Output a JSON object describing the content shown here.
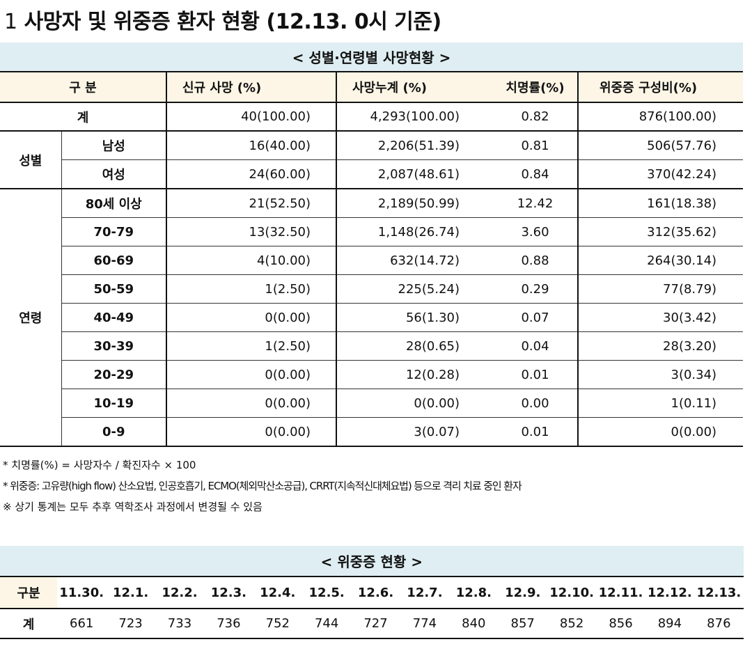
{
  "title": {
    "number": "1",
    "text": "사망자 및 위중증 환자 현황 (12.13. 0시 기준)"
  },
  "death_table": {
    "caption": "< 성별·연령별 사망현황 >",
    "headers": {
      "category": "구 분",
      "new_deaths": "신규 사망 (%)",
      "cumulative": "사망누계 (%)",
      "fatality": "치명률(%)",
      "severe": "위중증 구성비(%)"
    },
    "total": {
      "label": "계",
      "new": "40(100.00)",
      "cum": "4,293(100.00)",
      "cfr": "0.82",
      "severe": "876(100.00)"
    },
    "sex_group": "성별",
    "sex_rows": [
      {
        "label": "남성",
        "new": "16(40.00)",
        "cum": "2,206(51.39)",
        "cfr": "0.81",
        "severe": "506(57.76)"
      },
      {
        "label": "여성",
        "new": "24(60.00)",
        "cum": "2,087(48.61)",
        "cfr": "0.84",
        "severe": "370(42.24)"
      }
    ],
    "age_group": "연령",
    "age_rows": [
      {
        "label": "80세 이상",
        "new": "21(52.50)",
        "cum": "2,189(50.99)",
        "cfr": "12.42",
        "severe": "161(18.38)"
      },
      {
        "label": "70-79",
        "new": "13(32.50)",
        "cum": "1,148(26.74)",
        "cfr": "3.60",
        "severe": "312(35.62)"
      },
      {
        "label": "60-69",
        "new": "4(10.00)",
        "cum": "632(14.72)",
        "cfr": "0.88",
        "severe": "264(30.14)"
      },
      {
        "label": "50-59",
        "new": "1(2.50)",
        "cum": "225(5.24)",
        "cfr": "0.29",
        "severe": "77(8.79)"
      },
      {
        "label": "40-49",
        "new": "0(0.00)",
        "cum": "56(1.30)",
        "cfr": "0.07",
        "severe": "30(3.42)"
      },
      {
        "label": "30-39",
        "new": "1(2.50)",
        "cum": "28(0.65)",
        "cfr": "0.04",
        "severe": "28(3.20)"
      },
      {
        "label": "20-29",
        "new": "0(0.00)",
        "cum": "12(0.28)",
        "cfr": "0.01",
        "severe": "3(0.34)"
      },
      {
        "label": "10-19",
        "new": "0(0.00)",
        "cum": "0(0.00)",
        "cfr": "0.00",
        "severe": "1(0.11)"
      },
      {
        "label": "0-9",
        "new": "0(0.00)",
        "cum": "3(0.07)",
        "cfr": "0.01",
        "severe": "0(0.00)"
      }
    ]
  },
  "notes": [
    "* 치명률(%) = 사망자수 / 확진자수 × 100",
    "* 위중증: 고유량(high flow) 산소요법, 인공호흡기, ECMO(체외막산소공급), CRRT(지속적신대체요법) 등으로 격리 치료 중인 환자",
    "※ 상기 통계는 모두 추후 역학조사 과정에서 변경될 수 있음"
  ],
  "severe_table": {
    "caption": "< 위중증 현황 >",
    "row_header": "구분",
    "total_label": "계",
    "dates": [
      "11.30.",
      "12.1.",
      "12.2.",
      "12.3.",
      "12.4.",
      "12.5.",
      "12.6.",
      "12.7.",
      "12.8.",
      "12.9.",
      "12.10.",
      "12.11.",
      "12.12.",
      "12.13."
    ],
    "values": [
      "661",
      "723",
      "733",
      "736",
      "752",
      "744",
      "727",
      "774",
      "840",
      "857",
      "852",
      "856",
      "894",
      "876"
    ]
  },
  "colors": {
    "caption_bg": "#dfeef2",
    "header_bg": "#fdf6e6",
    "rule": "#111111"
  }
}
